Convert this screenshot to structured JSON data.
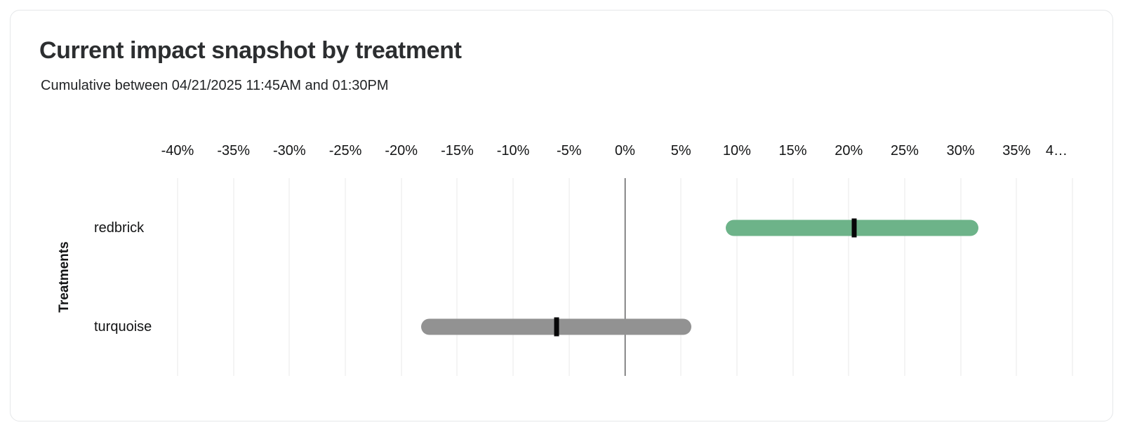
{
  "card": {
    "title": "Current impact snapshot by treatment",
    "subtitle": "Cumulative between 04/21/2025 11:45AM and 01:30PM"
  },
  "chart_data": {
    "type": "bar",
    "subtype": "horizontal_range_bar_with_point_estimate",
    "title": "Current impact snapshot by treatment",
    "subtitle": "Cumulative between 04/21/2025 11:45AM and 01:30PM",
    "xlabel": "",
    "ylabel": "Treatments",
    "x_axis": {
      "min": -40,
      "max": 40,
      "step": 5,
      "unit": "%",
      "tick_labels": [
        "-40%",
        "-35%",
        "-30%",
        "-25%",
        "-20%",
        "-15%",
        "-10%",
        "-5%",
        "0%",
        "5%",
        "10%",
        "15%",
        "20%",
        "25%",
        "30%",
        "35%",
        "4…"
      ],
      "zero_line": true
    },
    "categories": [
      "redbrick",
      "turquoise"
    ],
    "series": [
      {
        "name": "redbrick",
        "range_low": 9.0,
        "range_high": 31.6,
        "point_estimate": 20.5,
        "color": "#6db389"
      },
      {
        "name": "turquoise",
        "range_low": -18.2,
        "range_high": 5.9,
        "point_estimate": -6.1,
        "color": "#929292"
      }
    ],
    "colors": {
      "grid": "#e8e8e8",
      "zero_line": "#17181a",
      "point_tick": "#070708"
    },
    "legend": "none",
    "grid": "vertical-only"
  }
}
